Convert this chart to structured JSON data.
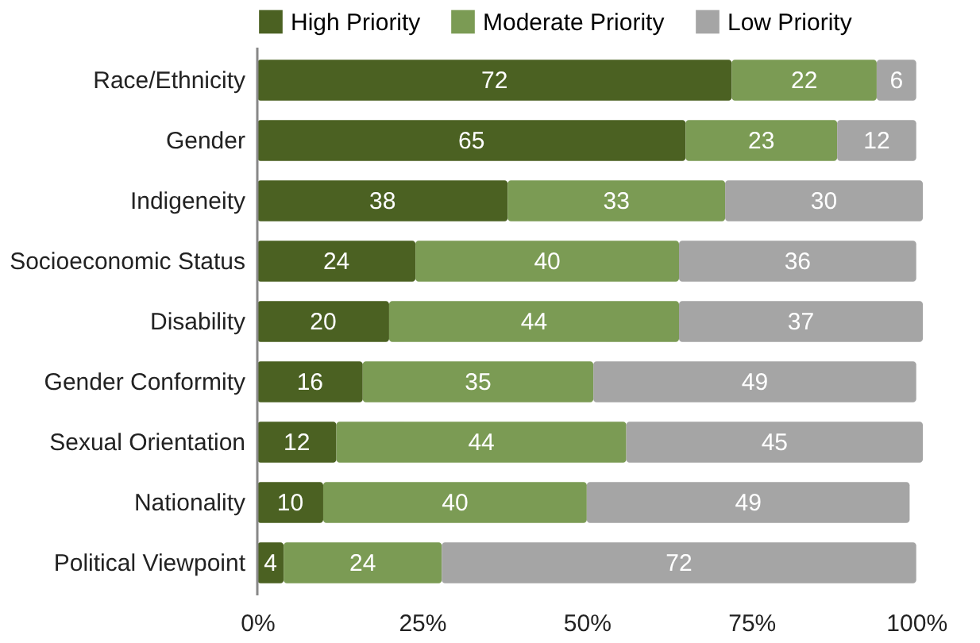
{
  "chart_data": {
    "type": "bar",
    "orientation": "horizontal",
    "stacked": true,
    "data_labels": true,
    "legend": "top",
    "grid": false,
    "categories": [
      "Race/Ethnicity",
      "Gender",
      "Indigeneity",
      "Socioeconomic Status",
      "Disability",
      "Gender Conformity",
      "Sexual Orientation",
      "Nationality",
      "Political Viewpoint"
    ],
    "series": [
      {
        "name": "High Priority",
        "color": "#4b6122",
        "values": [
          72,
          65,
          38,
          24,
          20,
          16,
          12,
          10,
          4
        ]
      },
      {
        "name": "Moderate Priority",
        "color": "#7b9b54",
        "values": [
          22,
          23,
          33,
          40,
          44,
          35,
          44,
          40,
          24
        ]
      },
      {
        "name": "Low Priority",
        "color": "#a5a5a5",
        "values": [
          6,
          12,
          30,
          36,
          37,
          49,
          45,
          49,
          72
        ]
      }
    ],
    "xlim": [
      0,
      101
    ],
    "xticks": [
      {
        "value": 0,
        "label": "0%"
      },
      {
        "value": 25,
        "label": "25%"
      },
      {
        "value": 50,
        "label": "50%"
      },
      {
        "value": 75,
        "label": "75%"
      },
      {
        "value": 100,
        "label": "100%"
      }
    ]
  }
}
